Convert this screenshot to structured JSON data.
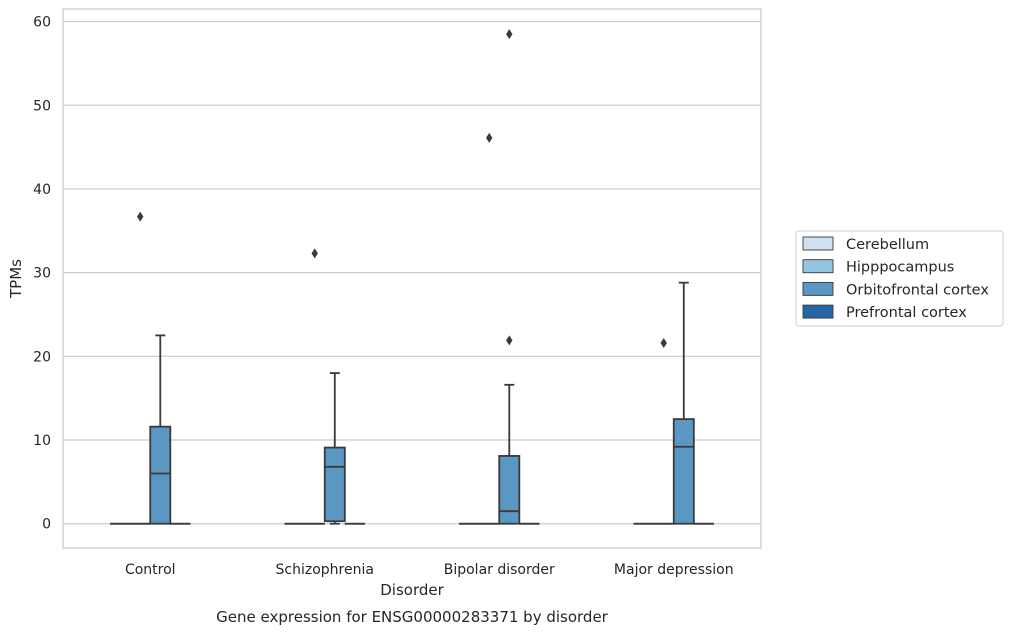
{
  "chart_data": {
    "type": "box",
    "caption": "Gene expression for ENSG00000283371 by disorder",
    "xlabel": "Disorder",
    "ylabel": "TPMs",
    "ylim": [
      -2.9,
      61.5
    ],
    "yticks": [
      0,
      10,
      20,
      30,
      40,
      50,
      60
    ],
    "grid": "horizontal",
    "legend_position": "right",
    "categories": [
      "Control",
      "Schizophrenia",
      "Bipolar disorder",
      "Major depression"
    ],
    "series": [
      {
        "name": "Cerebellum",
        "color": "#d0e1f2",
        "boxes": [
          {
            "q1": 0,
            "median": 0,
            "q3": 0,
            "whisker_low": 0,
            "whisker_high": 0,
            "outliers": []
          },
          {
            "q1": 0,
            "median": 0,
            "q3": 0,
            "whisker_low": 0,
            "whisker_high": 0,
            "outliers": []
          },
          {
            "q1": 0,
            "median": 0,
            "q3": 0,
            "whisker_low": 0,
            "whisker_high": 0,
            "outliers": []
          },
          {
            "q1": 0,
            "median": 0,
            "q3": 0,
            "whisker_low": 0,
            "whisker_high": 0,
            "outliers": []
          }
        ]
      },
      {
        "name": "Hipppocampus",
        "color": "#94c4df",
        "boxes": [
          {
            "q1": 0,
            "median": 0,
            "q3": 0,
            "whisker_low": 0,
            "whisker_high": 0,
            "outliers": [
              36.7
            ]
          },
          {
            "q1": 0,
            "median": 0,
            "q3": 0,
            "whisker_low": 0,
            "whisker_high": 0,
            "outliers": [
              32.3
            ]
          },
          {
            "q1": 0,
            "median": 0,
            "q3": 0,
            "whisker_low": 0,
            "whisker_high": 0,
            "outliers": [
              46.1
            ]
          },
          {
            "q1": 0,
            "median": 0,
            "q3": 0,
            "whisker_low": 0,
            "whisker_high": 0,
            "outliers": [
              21.6
            ]
          }
        ]
      },
      {
        "name": "Orbitofrontal cortex",
        "color": "#5b97c3",
        "boxes": [
          {
            "q1": 0,
            "median": 6.0,
            "q3": 11.6,
            "whisker_low": 0,
            "whisker_high": 22.5,
            "outliers": []
          },
          {
            "q1": 0.3,
            "median": 6.8,
            "q3": 9.1,
            "whisker_low": 0,
            "whisker_high": 18.0,
            "outliers": []
          },
          {
            "q1": 0,
            "median": 1.5,
            "q3": 8.1,
            "whisker_low": 0,
            "whisker_high": 16.6,
            "outliers": [
              58.5,
              21.9
            ]
          },
          {
            "q1": 0,
            "median": 9.2,
            "q3": 12.5,
            "whisker_low": 0,
            "whisker_high": 28.8,
            "outliers": []
          }
        ]
      },
      {
        "name": "Prefrontal cortex",
        "color": "#2666a6",
        "boxes": [
          {
            "q1": 0,
            "median": 0,
            "q3": 0,
            "whisker_low": 0,
            "whisker_high": 0,
            "outliers": []
          },
          {
            "q1": 0,
            "median": 0,
            "q3": 0,
            "whisker_low": 0,
            "whisker_high": 0,
            "outliers": []
          },
          {
            "q1": 0,
            "median": 0,
            "q3": 0,
            "whisker_low": 0,
            "whisker_high": 0,
            "outliers": []
          },
          {
            "q1": 0,
            "median": 0,
            "q3": 0,
            "whisker_low": 0,
            "whisker_high": 0,
            "outliers": []
          }
        ]
      }
    ]
  }
}
